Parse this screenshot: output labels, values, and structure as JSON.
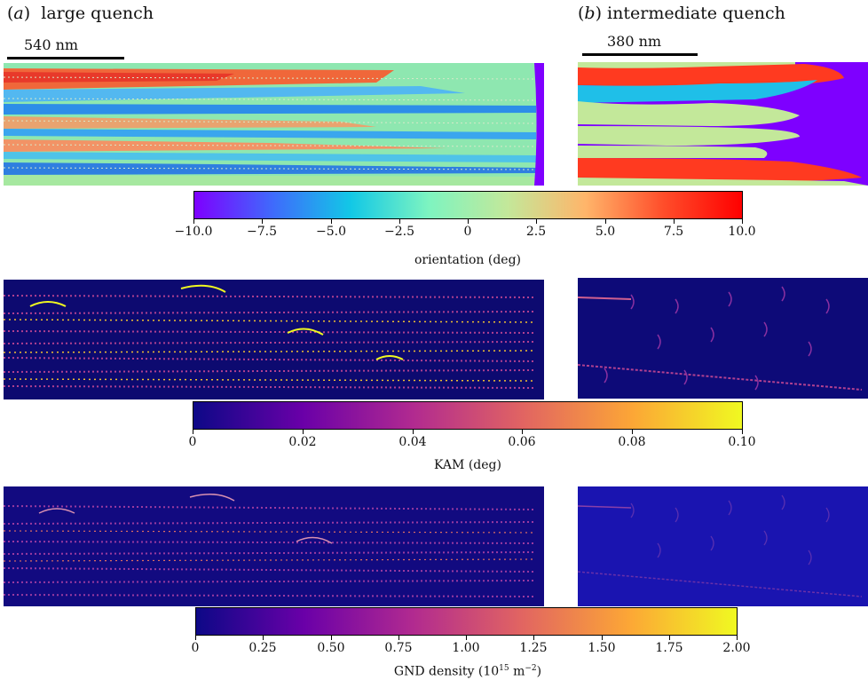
{
  "panel_a": {
    "letter": "a",
    "title": "large quench",
    "scale": "540 nm"
  },
  "panel_b": {
    "letter": "b",
    "title": "intermediate quench",
    "scale": "380 nm"
  },
  "colorbars": {
    "orientation": {
      "label": "orientation (deg)",
      "ticks": [
        "−10.0",
        "−7.5",
        "−5.0",
        "−2.5",
        "0",
        "2.5",
        "5.0",
        "7.5",
        "10.0"
      ],
      "colors": [
        "#7e00ff",
        "#3f6afc",
        "#12c8e6",
        "#7ef4c0",
        "#c3e89a",
        "#ffb56a",
        "#ff4d2a",
        "#ff0000"
      ]
    },
    "kam": {
      "label": "KAM (deg)",
      "ticks": [
        "0",
        "0.02",
        "0.04",
        "0.06",
        "0.08",
        "0.10"
      ],
      "colors": [
        "#0d0887",
        "#6a00a8",
        "#b12a90",
        "#e16462",
        "#fca636",
        "#f0f921"
      ]
    },
    "gnd": {
      "label_main": "GND density (10",
      "label_exp1": "15",
      "label_unit": " m",
      "label_exp2": "−2",
      "label_end": ")",
      "ticks": [
        "0",
        "0.25",
        "0.50",
        "0.75",
        "1.00",
        "1.25",
        "1.50",
        "1.75",
        "2.00"
      ],
      "colors": [
        "#0d0887",
        "#6a00a8",
        "#b12a90",
        "#e16462",
        "#fca636",
        "#f0f921"
      ]
    }
  }
}
